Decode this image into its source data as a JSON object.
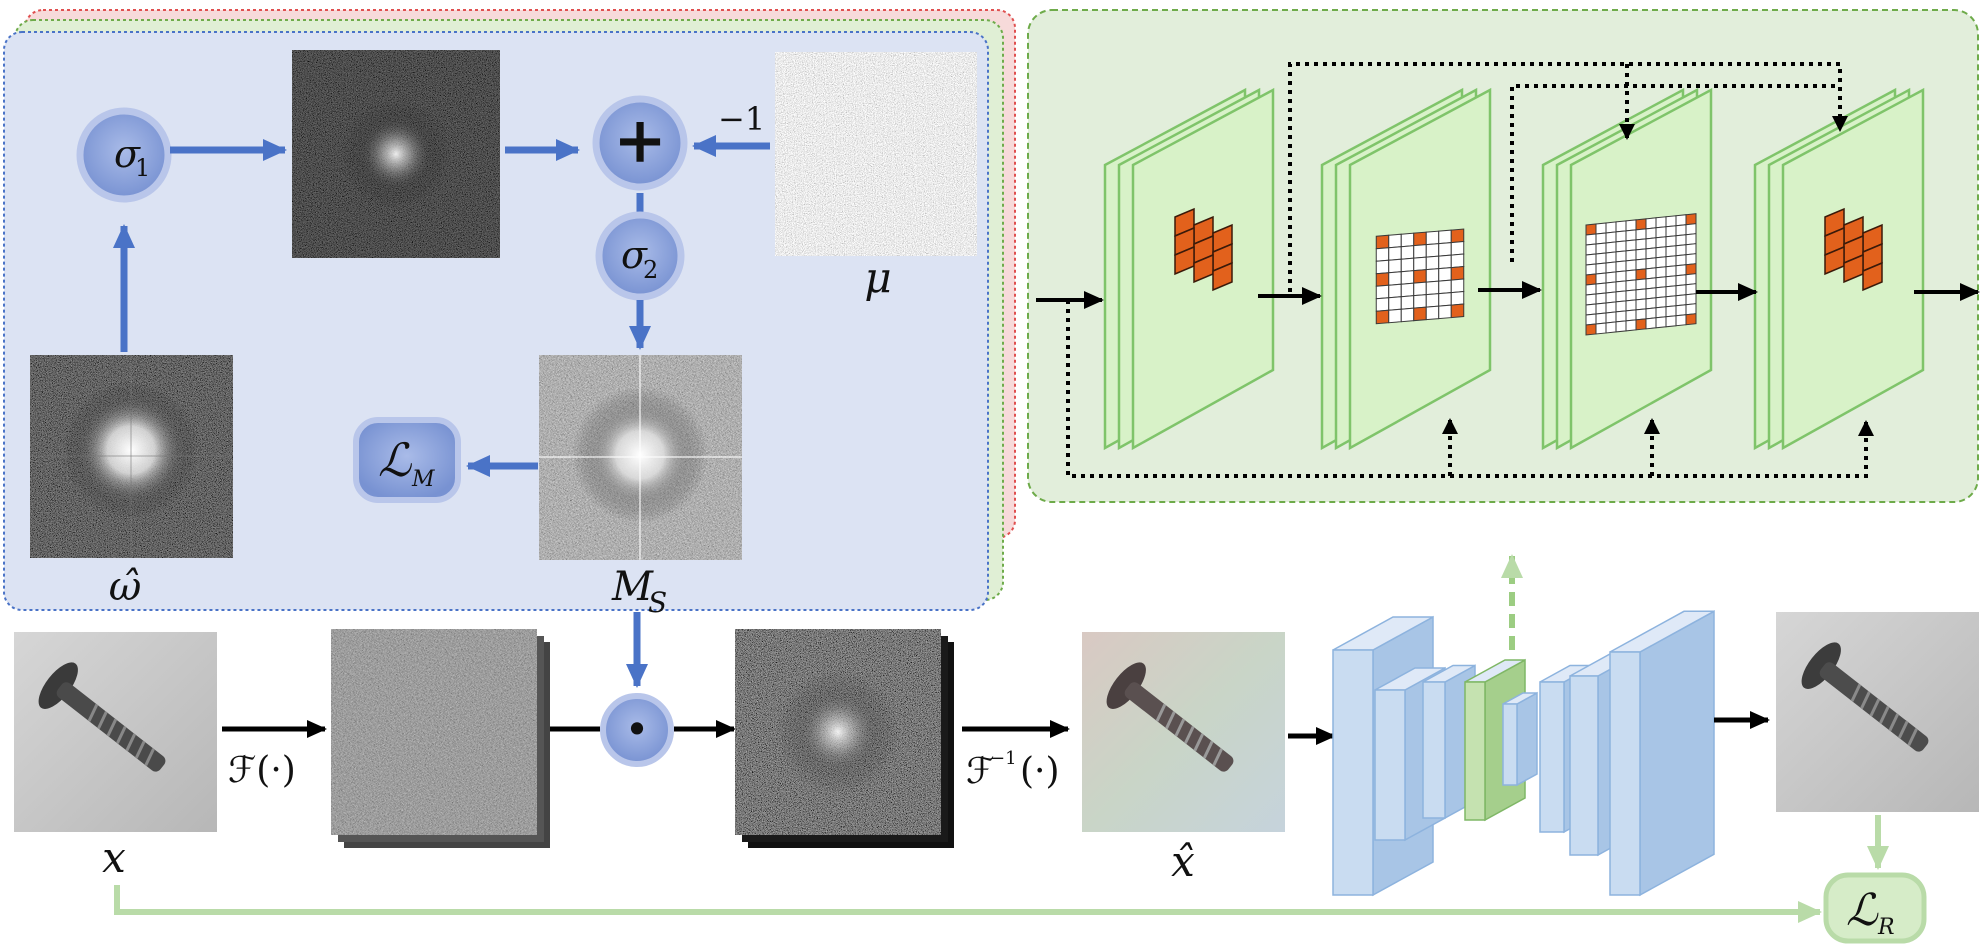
{
  "labels": {
    "sigma1": "σ",
    "sigma1_sub": "1",
    "sigma2": "σ",
    "sigma2_sub": "2",
    "plus": "+",
    "minus_one": "−1",
    "mu": "μ",
    "omega_hat": "ω̂",
    "ms": "M",
    "ms_sub": "S",
    "loss_m": "ℒ",
    "loss_m_sub": "M",
    "x": "x",
    "x_hat": "x̂",
    "fourier": "ℱ(·)",
    "inv_fourier": "ℱ",
    "inv_fourier_sup": "−1",
    "inv_fourier_arg": "(·)",
    "odot": "•",
    "loss_r": "ℒ",
    "loss_r_sub": "R"
  },
  "colors": {
    "blue_panel": "#dce3f3",
    "green_panel": "#e2eedb",
    "arrow_blue": "#4a73c7",
    "node_blue": "#8ea5dc",
    "green_line": "#b9dba8",
    "feature_green": "#d8f2c8",
    "kernel_orange": "#e2611c",
    "unet_blue": "#c9dcf1"
  }
}
